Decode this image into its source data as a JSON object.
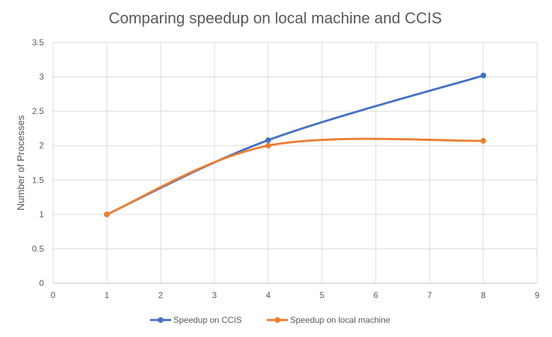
{
  "chart_data": {
    "type": "line",
    "title": "Comparing speedup on local machine and CCIS",
    "xlabel": "",
    "ylabel": "Number of Processes",
    "xlim": [
      0,
      9
    ],
    "ylim": [
      0,
      3.5
    ],
    "x_ticks": [
      "0",
      "1",
      "2",
      "3",
      "4",
      "5",
      "6",
      "7",
      "8",
      "9"
    ],
    "y_ticks": [
      "0",
      "0.5",
      "1",
      "1.5",
      "2",
      "2.5",
      "3",
      "3.5"
    ],
    "grid": true,
    "smooth": true,
    "legend_position": "bottom",
    "series": [
      {
        "name": "Speedup on CCIS",
        "color": "#4472C4",
        "x": [
          1,
          4,
          8
        ],
        "y": [
          1.0,
          2.08,
          3.02
        ]
      },
      {
        "name": "Speedup on local machine",
        "color": "#ED7D31",
        "x": [
          1,
          4,
          8
        ],
        "y": [
          1.0,
          2.0,
          2.07
        ]
      }
    ]
  }
}
